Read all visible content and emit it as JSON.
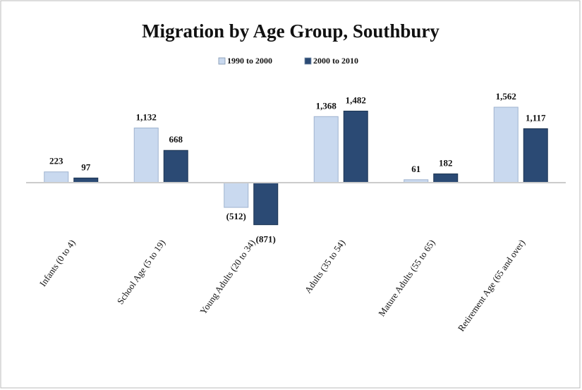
{
  "chart_data": {
    "type": "bar",
    "title": "Migration by Age Group, Southbury",
    "categories": [
      "Infants (0 to 4)",
      "School Age (5 to 19)",
      "Young Adults (20 to 34)",
      "Adults (35 to 54)",
      "Mature Adults (55 to 65)",
      "Retirement Age (65 and over)"
    ],
    "series": [
      {
        "name": "1990 to 2000",
        "color": "#c9d9ef",
        "values": [
          223,
          1132,
          -512,
          1368,
          61,
          1562
        ],
        "value_labels": [
          "223",
          "1,132",
          "(512)",
          "1,368",
          "61",
          "1,562"
        ]
      },
      {
        "name": "2000 to 2010",
        "color": "#2b4a74",
        "values": [
          97,
          668,
          -871,
          1482,
          182,
          1117
        ],
        "value_labels": [
          "97",
          "668",
          "(871)",
          "1,482",
          "182",
          "1,117"
        ]
      }
    ],
    "ylim": [
      -1000,
      2000
    ],
    "legend": "top"
  }
}
